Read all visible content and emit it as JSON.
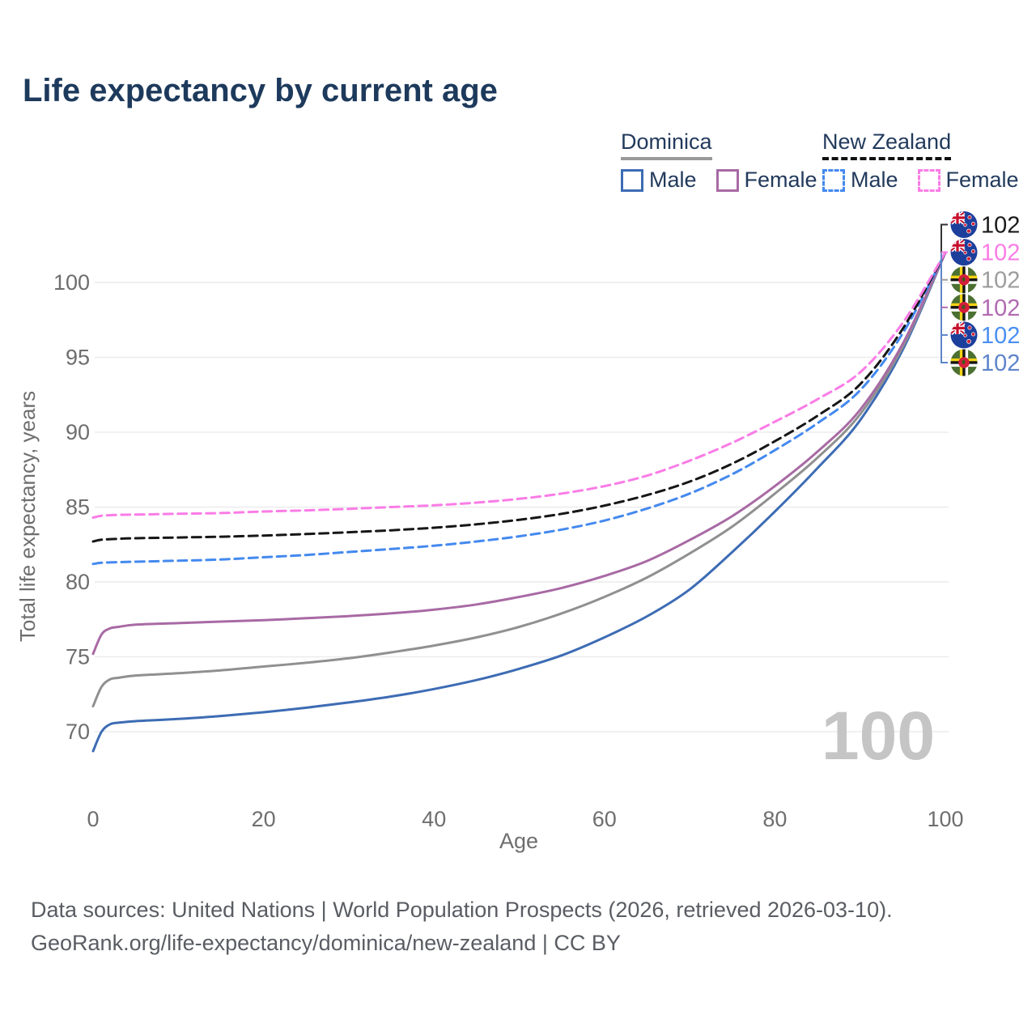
{
  "title": "Life expectancy by current age",
  "legend": {
    "groups": [
      {
        "name": "Dominica",
        "underline_style": "solid",
        "underline_color": "#999999",
        "items": [
          {
            "label": "Male",
            "color": "#3d6cb4",
            "style": "solid"
          },
          {
            "label": "Female",
            "color": "#a86aa4",
            "style": "solid"
          }
        ]
      },
      {
        "name": "New Zealand",
        "underline_style": "dashed",
        "underline_color": "#111111",
        "items": [
          {
            "label": "Male",
            "color": "#4489ef",
            "style": "dashed"
          },
          {
            "label": "Female",
            "color": "#fa7ce6",
            "style": "dashed"
          }
        ]
      }
    ]
  },
  "axes": {
    "x": {
      "label": "Age",
      "ticks": [
        0,
        20,
        40,
        60,
        80,
        100
      ],
      "range": [
        0,
        100
      ]
    },
    "y": {
      "label": "Total life expectancy, years",
      "ticks": [
        70,
        75,
        80,
        85,
        90,
        95,
        100
      ],
      "range": [
        67.5,
        103.5
      ]
    }
  },
  "watermark": "100",
  "end_labels": [
    {
      "flag": "new-zealand",
      "value": "102",
      "color": "#1a1a1a"
    },
    {
      "flag": "new-zealand",
      "value": "102",
      "color": "#fa7ce6"
    },
    {
      "flag": "dominica",
      "value": "102",
      "color": "#9c9c9c"
    },
    {
      "flag": "dominica",
      "value": "102",
      "color": "#b16ab1"
    },
    {
      "flag": "new-zealand",
      "value": "102",
      "color": "#4a8ff2"
    },
    {
      "flag": "dominica",
      "value": "102",
      "color": "#5e84ca"
    }
  ],
  "footer": {
    "line1": "Data sources: United Nations | World Population Prospects (2026, retrieved 2026-03-10).",
    "line2": "GeoRank.org/life-expectancy/dominica/new-zealand | CC BY"
  },
  "chart_data": {
    "type": "line",
    "title": "Life expectancy by current age",
    "xlabel": "Age",
    "ylabel": "Total life expectancy, years",
    "xlim": [
      0,
      100
    ],
    "ylim": [
      67.5,
      103.5
    ],
    "grid": "horizontal",
    "legend_position": "top-right",
    "series": [
      {
        "name": "Dominica Male",
        "country": "Dominica",
        "sex": "Male",
        "color": "#3d6cb4",
        "dash": "solid",
        "end_value": 102,
        "points": [
          [
            0,
            68.7
          ],
          [
            1,
            70.0
          ],
          [
            2,
            70.5
          ],
          [
            3,
            70.6
          ],
          [
            5,
            70.7
          ],
          [
            10,
            70.85
          ],
          [
            15,
            71.05
          ],
          [
            20,
            71.3
          ],
          [
            25,
            71.6
          ],
          [
            30,
            71.95
          ],
          [
            35,
            72.35
          ],
          [
            40,
            72.85
          ],
          [
            45,
            73.45
          ],
          [
            50,
            74.2
          ],
          [
            55,
            75.1
          ],
          [
            60,
            76.3
          ],
          [
            65,
            77.7
          ],
          [
            70,
            79.5
          ],
          [
            75,
            82.0
          ],
          [
            80,
            84.7
          ],
          [
            85,
            87.6
          ],
          [
            90,
            90.8
          ],
          [
            95,
            95.5
          ],
          [
            100,
            102
          ]
        ]
      },
      {
        "name": "Dominica Total",
        "country": "Dominica",
        "sex": "Total",
        "color": "#909090",
        "dash": "solid",
        "end_value": 102,
        "points": [
          [
            0,
            71.7
          ],
          [
            1,
            73.0
          ],
          [
            2,
            73.5
          ],
          [
            3,
            73.6
          ],
          [
            5,
            73.75
          ],
          [
            10,
            73.9
          ],
          [
            15,
            74.1
          ],
          [
            20,
            74.35
          ],
          [
            25,
            74.6
          ],
          [
            30,
            74.9
          ],
          [
            35,
            75.3
          ],
          [
            40,
            75.75
          ],
          [
            45,
            76.3
          ],
          [
            50,
            77.0
          ],
          [
            55,
            77.9
          ],
          [
            60,
            79.0
          ],
          [
            65,
            80.3
          ],
          [
            70,
            81.9
          ],
          [
            75,
            83.7
          ],
          [
            80,
            85.9
          ],
          [
            85,
            88.3
          ],
          [
            90,
            91.2
          ],
          [
            95,
            95.7
          ],
          [
            100,
            102
          ]
        ]
      },
      {
        "name": "Dominica Female",
        "country": "Dominica",
        "sex": "Female",
        "color": "#a86aa4",
        "dash": "solid",
        "end_value": 102,
        "points": [
          [
            0,
            75.2
          ],
          [
            1,
            76.5
          ],
          [
            2,
            76.9
          ],
          [
            3,
            77.0
          ],
          [
            5,
            77.15
          ],
          [
            10,
            77.25
          ],
          [
            15,
            77.35
          ],
          [
            20,
            77.45
          ],
          [
            25,
            77.58
          ],
          [
            30,
            77.72
          ],
          [
            35,
            77.9
          ],
          [
            40,
            78.15
          ],
          [
            45,
            78.5
          ],
          [
            50,
            79.0
          ],
          [
            55,
            79.6
          ],
          [
            60,
            80.4
          ],
          [
            65,
            81.4
          ],
          [
            70,
            82.8
          ],
          [
            75,
            84.4
          ],
          [
            80,
            86.4
          ],
          [
            85,
            88.7
          ],
          [
            90,
            91.5
          ],
          [
            95,
            95.9
          ],
          [
            100,
            102
          ]
        ]
      },
      {
        "name": "New Zealand Male",
        "country": "New Zealand",
        "sex": "Male",
        "color": "#4489ef",
        "dash": "dashed",
        "end_value": 102,
        "points": [
          [
            0,
            81.2
          ],
          [
            1,
            81.28
          ],
          [
            3,
            81.32
          ],
          [
            5,
            81.35
          ],
          [
            10,
            81.42
          ],
          [
            15,
            81.5
          ],
          [
            20,
            81.65
          ],
          [
            25,
            81.8
          ],
          [
            30,
            82.0
          ],
          [
            35,
            82.2
          ],
          [
            40,
            82.42
          ],
          [
            45,
            82.7
          ],
          [
            50,
            83.05
          ],
          [
            55,
            83.5
          ],
          [
            60,
            84.1
          ],
          [
            65,
            84.9
          ],
          [
            70,
            85.9
          ],
          [
            75,
            87.2
          ],
          [
            80,
            88.8
          ],
          [
            85,
            90.6
          ],
          [
            90,
            92.8
          ],
          [
            95,
            96.6
          ],
          [
            100,
            102
          ]
        ]
      },
      {
        "name": "New Zealand Total",
        "country": "New Zealand",
        "sex": "Total",
        "color": "#161616",
        "dash": "dashed",
        "end_value": 102,
        "points": [
          [
            0,
            82.7
          ],
          [
            1,
            82.82
          ],
          [
            3,
            82.88
          ],
          [
            5,
            82.92
          ],
          [
            10,
            82.97
          ],
          [
            15,
            83.02
          ],
          [
            20,
            83.1
          ],
          [
            25,
            83.2
          ],
          [
            30,
            83.32
          ],
          [
            35,
            83.45
          ],
          [
            40,
            83.62
          ],
          [
            45,
            83.85
          ],
          [
            50,
            84.15
          ],
          [
            55,
            84.55
          ],
          [
            60,
            85.1
          ],
          [
            65,
            85.8
          ],
          [
            70,
            86.7
          ],
          [
            75,
            87.9
          ],
          [
            80,
            89.4
          ],
          [
            85,
            91.1
          ],
          [
            90,
            93.2
          ],
          [
            95,
            96.9
          ],
          [
            100,
            102
          ]
        ]
      },
      {
        "name": "New Zealand Female",
        "country": "New Zealand",
        "sex": "Female",
        "color": "#fa7ce6",
        "dash": "dashed",
        "end_value": 102,
        "points": [
          [
            0,
            84.3
          ],
          [
            1,
            84.42
          ],
          [
            3,
            84.48
          ],
          [
            5,
            84.5
          ],
          [
            10,
            84.55
          ],
          [
            15,
            84.6
          ],
          [
            20,
            84.7
          ],
          [
            25,
            84.78
          ],
          [
            30,
            84.88
          ],
          [
            35,
            85.0
          ],
          [
            40,
            85.12
          ],
          [
            45,
            85.3
          ],
          [
            50,
            85.55
          ],
          [
            55,
            85.9
          ],
          [
            60,
            86.4
          ],
          [
            65,
            87.1
          ],
          [
            70,
            88.1
          ],
          [
            75,
            89.3
          ],
          [
            80,
            90.7
          ],
          [
            85,
            92.2
          ],
          [
            90,
            94.0
          ],
          [
            95,
            97.3
          ],
          [
            100,
            102
          ]
        ]
      }
    ]
  }
}
